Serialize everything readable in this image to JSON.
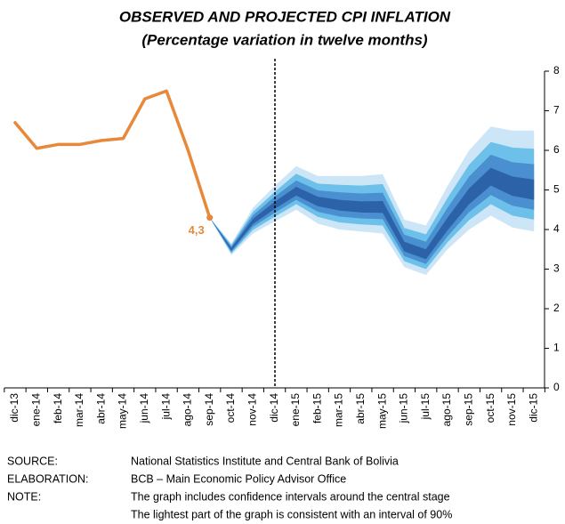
{
  "chart_data": {
    "type": "fan",
    "title": "OBSERVED AND PROJECTED CPI INFLATION",
    "subtitle": "(Percentage variation in twelve months)",
    "categories": [
      "dic-13",
      "ene-14",
      "feb-14",
      "mar-14",
      "abr-14",
      "may-14",
      "jun-14",
      "jul-14",
      "ago-14",
      "sep-14",
      "oct-14",
      "nov-14",
      "dic-14",
      "ene-15",
      "feb-15",
      "mar-15",
      "abr-15",
      "may-15",
      "jun-15",
      "jul-15",
      "ago-15",
      "sep-15",
      "oct-15",
      "nov-15",
      "dic-15"
    ],
    "ylim": [
      0,
      8
    ],
    "yticks": [
      0,
      1,
      2,
      3,
      4,
      5,
      6,
      7,
      8
    ],
    "observed": {
      "color": "#e8883a",
      "values": [
        6.7,
        6.05,
        6.15,
        6.15,
        6.25,
        6.3,
        7.3,
        7.5,
        6.0,
        4.3,
        null,
        null,
        null,
        null,
        null,
        null,
        null,
        null,
        null,
        null,
        null,
        null,
        null,
        null,
        null
      ],
      "value_labels": [
        null,
        null,
        null,
        null,
        null,
        null,
        null,
        null,
        null,
        "4,3",
        null,
        null,
        null,
        null,
        null,
        null,
        null,
        null,
        null,
        null,
        null,
        null,
        null,
        null,
        null
      ]
    },
    "bands": [
      {
        "color": "#cde6f7",
        "lower": [
          null,
          null,
          null,
          null,
          null,
          null,
          null,
          null,
          null,
          4.3,
          3.35,
          3.9,
          4.2,
          4.5,
          4.15,
          4.0,
          3.95,
          3.9,
          3.05,
          2.85,
          3.5,
          4.0,
          4.35,
          4.05,
          3.95
        ],
        "upper": [
          null,
          null,
          null,
          null,
          null,
          null,
          null,
          null,
          null,
          4.3,
          3.65,
          4.55,
          5.1,
          5.6,
          5.35,
          5.35,
          5.35,
          5.4,
          4.25,
          4.1,
          5.1,
          6.0,
          6.6,
          6.5,
          6.5
        ]
      },
      {
        "color": "#6cc0ea",
        "lower": [
          null,
          null,
          null,
          null,
          null,
          null,
          null,
          null,
          null,
          4.3,
          3.4,
          3.99,
          4.32,
          4.64,
          4.32,
          4.18,
          4.13,
          4.1,
          3.2,
          3.0,
          3.68,
          4.24,
          4.64,
          4.35,
          4.25
        ],
        "upper": [
          null,
          null,
          null,
          null,
          null,
          null,
          null,
          null,
          null,
          4.3,
          3.61,
          4.45,
          4.95,
          5.41,
          5.16,
          5.13,
          5.11,
          5.15,
          4.04,
          3.88,
          4.8,
          5.64,
          6.21,
          6.07,
          6.04
        ]
      },
      {
        "color": "#4a8fcf",
        "lower": [
          null,
          null,
          null,
          null,
          null,
          null,
          null,
          null,
          null,
          4.3,
          3.43,
          4.07,
          4.42,
          4.75,
          4.45,
          4.33,
          4.28,
          4.26,
          3.33,
          3.13,
          3.83,
          4.44,
          4.87,
          4.6,
          4.5
        ],
        "upper": [
          null,
          null,
          null,
          null,
          null,
          null,
          null,
          null,
          null,
          4.3,
          3.57,
          4.36,
          4.83,
          5.24,
          4.99,
          4.94,
          4.91,
          4.93,
          3.87,
          3.69,
          4.55,
          5.34,
          5.89,
          5.7,
          5.65
        ]
      },
      {
        "color": "#2b62a8",
        "lower": [
          null,
          null,
          null,
          null,
          null,
          null,
          null,
          null,
          null,
          4.3,
          3.47,
          4.14,
          4.52,
          4.86,
          4.59,
          4.48,
          4.43,
          4.42,
          3.45,
          3.25,
          3.98,
          4.64,
          5.11,
          4.85,
          4.75
        ],
        "upper": [
          null,
          null,
          null,
          null,
          null,
          null,
          null,
          null,
          null,
          4.3,
          3.53,
          4.27,
          4.7,
          5.08,
          4.83,
          4.75,
          4.71,
          4.72,
          3.69,
          3.5,
          4.3,
          5.04,
          5.56,
          5.34,
          5.26
        ]
      }
    ]
  },
  "notes": [
    {
      "label": "SOURCE:",
      "text": "National Statistics Institute and Central Bank of Bolivia"
    },
    {
      "label": "ELABORATION:",
      "text": "BCB – Main Economic Policy Advisor Office"
    },
    {
      "label": "NOTE:",
      "text": "The graph includes confidence intervals around the central stage"
    },
    {
      "text": "The lightest part of the graph is consistent with an interval of 90%"
    }
  ]
}
